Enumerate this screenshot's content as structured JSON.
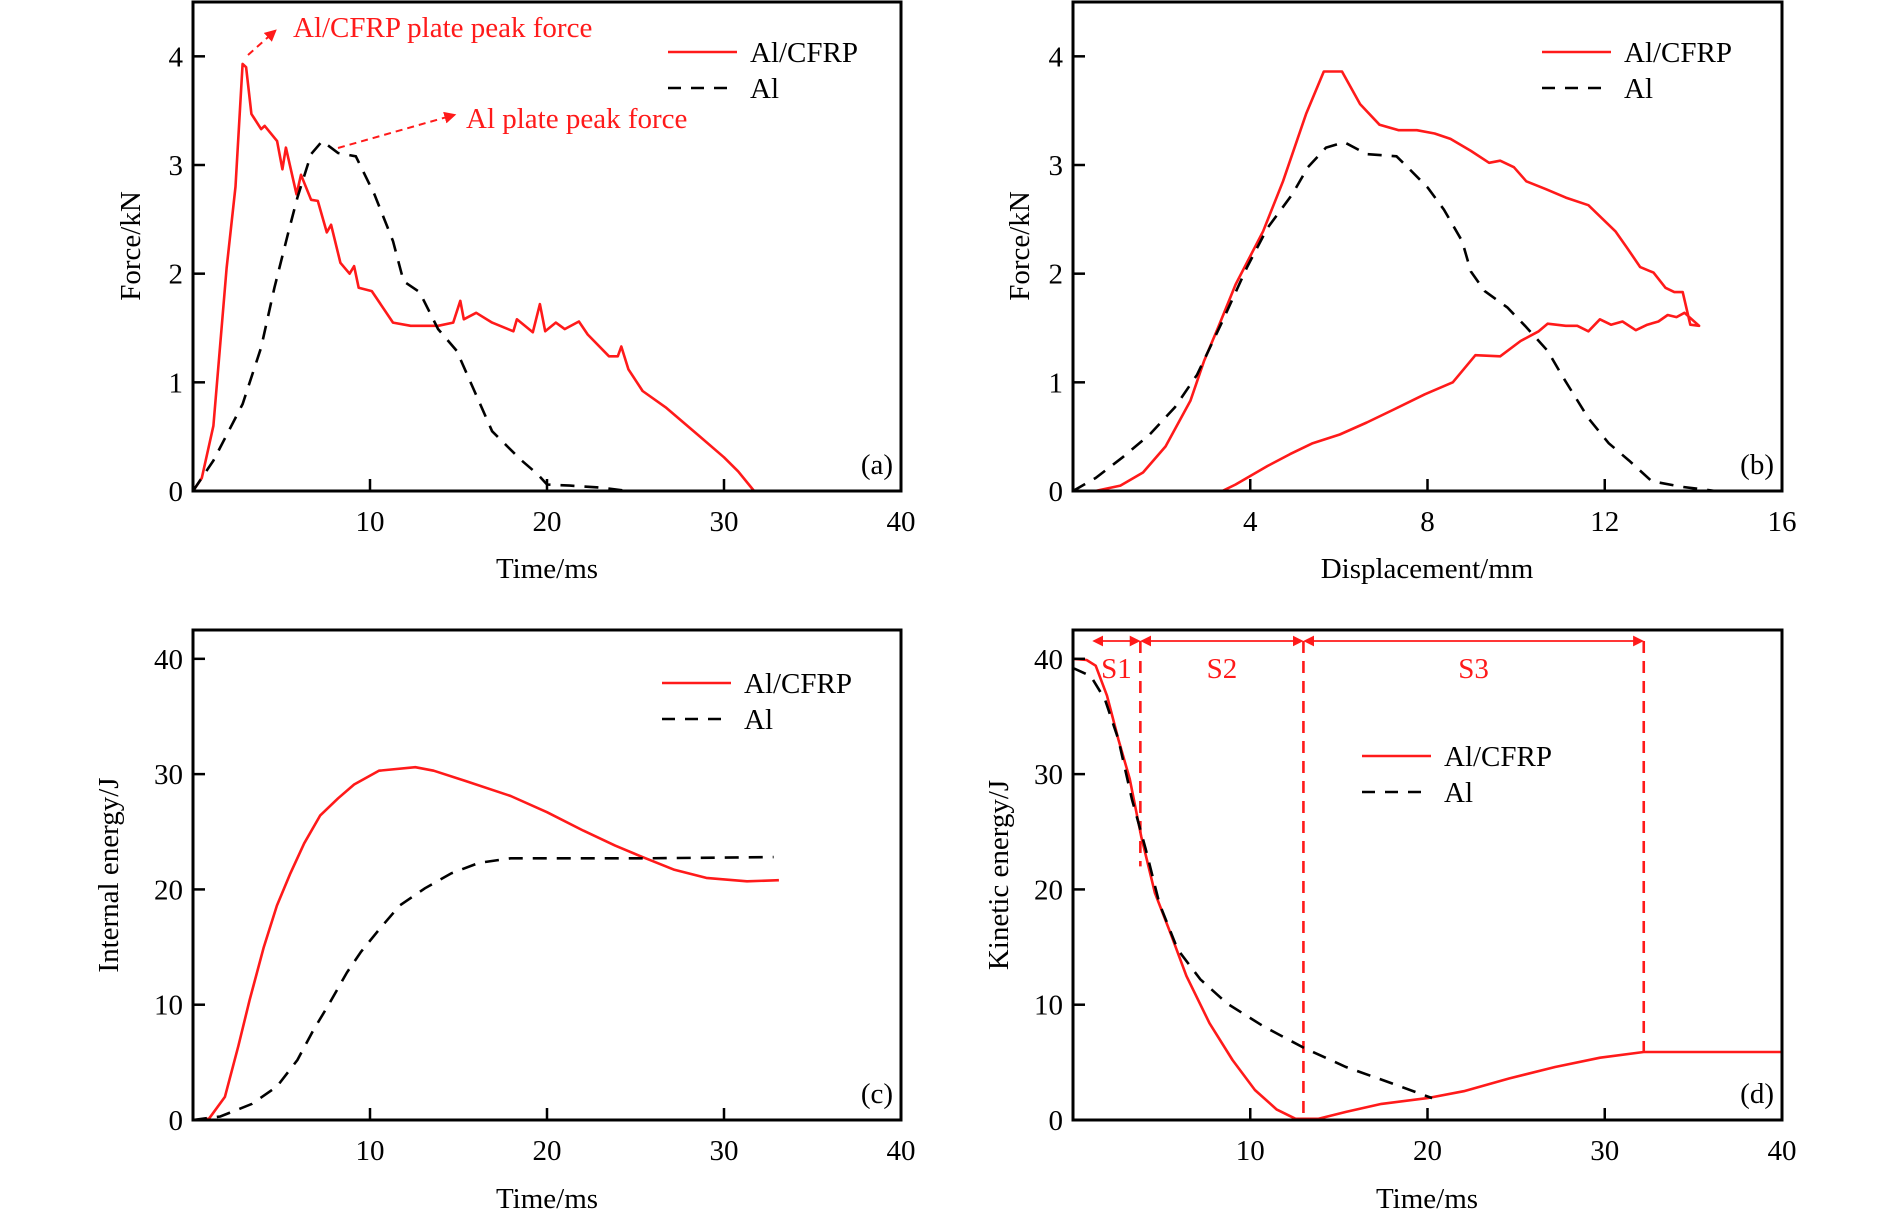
{
  "colors": {
    "al_cfrp": "#ff1a1a",
    "al": "#000000",
    "annotation": "#ff1a1a"
  },
  "chart_data": [
    {
      "id": "a",
      "type": "line",
      "panel_label": "(a)",
      "xlabel": "Time/ms",
      "ylabel": "Force/kN",
      "xlim": [
        0,
        40
      ],
      "ylim": [
        0,
        4.5
      ],
      "xticks": [
        10,
        20,
        30,
        40
      ],
      "yticks": [
        0,
        1,
        2,
        3,
        4
      ],
      "grid": false,
      "legend": {
        "placement": "top-right",
        "entries": [
          "Al/CFRP",
          "Al"
        ]
      },
      "annotations": [
        {
          "text": "Al/CFRP plate peak force",
          "points_to": [
            2.8,
            3.93
          ]
        },
        {
          "text": "Al plate peak force",
          "points_to": [
            7.3,
            3.22
          ]
        }
      ],
      "series": [
        {
          "name": "Al/CFRP",
          "style": "solid",
          "color": "#ff1a1a",
          "x": [
            0,
            0.5,
            1.15,
            1.9,
            2.4,
            2.8,
            3.0,
            3.3,
            3.85,
            4.05,
            4.75,
            5.05,
            5.25,
            5.85,
            6.1,
            6.67,
            7.05,
            7.56,
            7.8,
            8.33,
            8.85,
            9.1,
            9.36,
            10.1,
            11.3,
            12.3,
            13.85,
            14.7,
            15.1,
            15.3,
            16.0,
            16.9,
            18.1,
            18.3,
            19.2,
            19.6,
            19.9,
            20.5,
            21.0,
            21.8,
            22.3,
            23.5,
            24.0,
            24.2,
            24.6,
            25.4,
            26.7,
            28.5,
            30.0,
            30.8,
            31.7
          ],
          "y": [
            0,
            0.12,
            0.6,
            2.05,
            2.8,
            3.93,
            3.9,
            3.47,
            3.33,
            3.36,
            3.22,
            2.96,
            3.16,
            2.73,
            2.91,
            2.68,
            2.67,
            2.38,
            2.45,
            2.1,
            2.0,
            2.07,
            1.87,
            1.84,
            1.55,
            1.52,
            1.52,
            1.55,
            1.75,
            1.58,
            1.64,
            1.55,
            1.47,
            1.58,
            1.46,
            1.72,
            1.47,
            1.55,
            1.49,
            1.56,
            1.44,
            1.24,
            1.24,
            1.33,
            1.12,
            0.92,
            0.77,
            0.52,
            0.31,
            0.18,
            0
          ]
        },
        {
          "name": "Al",
          "style": "dashed",
          "color": "#000000",
          "x": [
            0,
            1.15,
            2.8,
            3.85,
            4.6,
            5.4,
            5.9,
            6.67,
            7.3,
            8.2,
            9.2,
            10.25,
            11.3,
            11.9,
            12.8,
            13.85,
            14.9,
            15.9,
            16.9,
            18.5,
            19.5,
            20.0,
            21.3,
            23.1,
            24.6
          ],
          "y": [
            0,
            0.28,
            0.8,
            1.32,
            1.87,
            2.39,
            2.7,
            3.1,
            3.22,
            3.11,
            3.08,
            2.73,
            2.3,
            1.93,
            1.83,
            1.49,
            1.29,
            0.92,
            0.55,
            0.29,
            0.15,
            0.06,
            0.05,
            0.03,
            0
          ]
        }
      ]
    },
    {
      "id": "b",
      "type": "line",
      "panel_label": "(b)",
      "xlabel": "Displacement/mm",
      "ylabel": "Force/kN",
      "xlim": [
        0,
        16
      ],
      "ylim": [
        0,
        4.5
      ],
      "xticks": [
        4,
        8,
        12,
        16
      ],
      "yticks": [
        0,
        1,
        2,
        3,
        4
      ],
      "grid": false,
      "legend": {
        "placement": "top-right",
        "entries": [
          "Al/CFRP",
          "Al"
        ]
      },
      "series": [
        {
          "name": "Al/CFRP",
          "style": "solid",
          "color": "#ff1a1a",
          "x": [
            0,
            0.5,
            1.07,
            1.58,
            2.09,
            2.65,
            2.96,
            3.27,
            3.67,
            4.29,
            4.74,
            5.26,
            5.66,
            6.07,
            6.48,
            6.92,
            7.35,
            7.76,
            8.16,
            8.52,
            8.98,
            9.39,
            9.64,
            9.95,
            10.23,
            10.66,
            11.12,
            11.63,
            12.24,
            12.5,
            12.8,
            13.1,
            13.37,
            13.57,
            13.76,
            13.93,
            14.13,
            13.8,
            13.62,
            13.42,
            13.21,
            12.96,
            12.7,
            12.4,
            12.14,
            11.89,
            11.63,
            11.38,
            11.12,
            10.71,
            10.51,
            10.1,
            9.64,
            9.08,
            8.57,
            7.94,
            7.24,
            6.63,
            6.02,
            5.41,
            4.9,
            4.39,
            3.67,
            3.37,
            3.06
          ],
          "y": [
            0,
            0,
            0.05,
            0.17,
            0.41,
            0.83,
            1.2,
            1.5,
            1.9,
            2.39,
            2.85,
            3.47,
            3.86,
            3.86,
            3.56,
            3.37,
            3.32,
            3.32,
            3.29,
            3.24,
            3.13,
            3.02,
            3.04,
            2.98,
            2.85,
            2.78,
            2.7,
            2.63,
            2.39,
            2.24,
            2.06,
            2.01,
            1.87,
            1.83,
            1.83,
            1.53,
            1.52,
            1.64,
            1.6,
            1.62,
            1.56,
            1.53,
            1.48,
            1.56,
            1.53,
            1.58,
            1.47,
            1.52,
            1.52,
            1.54,
            1.47,
            1.38,
            1.24,
            1.25,
            1.0,
            0.89,
            0.75,
            0.63,
            0.52,
            0.44,
            0.34,
            0.23,
            0.06,
            0,
            0
          ]
        },
        {
          "name": "Al",
          "style": "dashed",
          "color": "#000000",
          "x": [
            0,
            0.51,
            1.12,
            1.73,
            2.3,
            2.8,
            3.37,
            3.93,
            4.39,
            4.95,
            5.3,
            5.71,
            6.12,
            6.63,
            7.3,
            7.55,
            8.01,
            8.37,
            8.78,
            8.98,
            9.29,
            9.8,
            10.2,
            10.71,
            11.07,
            11.63,
            12.09,
            12.55,
            13.06,
            13.72,
            14.5,
            15.1
          ],
          "y": [
            0,
            0.12,
            0.31,
            0.52,
            0.77,
            1.07,
            1.56,
            2.06,
            2.42,
            2.73,
            2.98,
            3.16,
            3.21,
            3.1,
            3.08,
            2.98,
            2.79,
            2.59,
            2.3,
            2.02,
            1.84,
            1.69,
            1.52,
            1.29,
            1.04,
            0.67,
            0.44,
            0.28,
            0.09,
            0.04,
            0,
            0
          ]
        }
      ]
    },
    {
      "id": "c",
      "type": "line",
      "panel_label": "(c)",
      "xlabel": "Time/ms",
      "ylabel": "Internal energy/J",
      "xlim": [
        0,
        40
      ],
      "ylim": [
        0,
        42.5
      ],
      "xticks": [
        10,
        20,
        30,
        40
      ],
      "yticks": [
        0,
        10,
        20,
        30,
        40
      ],
      "grid": false,
      "legend": {
        "placement": "top-right",
        "entries": [
          "Al/CFRP",
          "Al"
        ]
      },
      "series": [
        {
          "name": "Al/CFRP",
          "style": "solid",
          "color": "#ff1a1a",
          "x": [
            0,
            0.9,
            1.8,
            2.56,
            3.2,
            4.0,
            4.74,
            5.5,
            6.28,
            7.18,
            8.2,
            9.1,
            10.5,
            12.56,
            13.6,
            15.4,
            17.95,
            20.0,
            22.05,
            23.85,
            25.4,
            27.2,
            29.0,
            31.3,
            33.1
          ],
          "y": [
            0,
            0.1,
            2.0,
            6.4,
            10.4,
            15.0,
            18.6,
            21.4,
            24.0,
            26.4,
            27.9,
            29.1,
            30.3,
            30.6,
            30.3,
            29.4,
            28.1,
            26.7,
            25.1,
            23.8,
            22.8,
            21.7,
            21.0,
            20.7,
            20.8
          ]
        },
        {
          "name": "Al",
          "style": "dashed",
          "color": "#000000",
          "x": [
            0,
            1.54,
            3.33,
            4.74,
            5.9,
            6.8,
            7.7,
            8.7,
            9.5,
            10.5,
            11.67,
            13.1,
            14.6,
            16.15,
            17.95,
            20.5,
            25.6,
            32.8
          ],
          "y": [
            0,
            0.3,
            1.4,
            2.9,
            5.2,
            7.8,
            10.1,
            12.8,
            14.6,
            16.5,
            18.6,
            20.1,
            21.4,
            22.3,
            22.7,
            22.7,
            22.7,
            22.8
          ]
        }
      ]
    },
    {
      "id": "d",
      "type": "line",
      "panel_label": "(d)",
      "xlabel": "Time/ms",
      "ylabel": "Kinetic energy/J",
      "xlim": [
        0,
        40
      ],
      "ylim": [
        0,
        42.5
      ],
      "xticks": [
        10,
        20,
        30,
        40
      ],
      "yticks": [
        0,
        10,
        20,
        30,
        40
      ],
      "grid": false,
      "legend": {
        "placement": "upper-center",
        "entries": [
          "Al/CFRP",
          "Al"
        ]
      },
      "stages": [
        {
          "label": "S1",
          "from": 1.1,
          "to": 3.8
        },
        {
          "label": "S2",
          "from": 3.8,
          "to": 13.0
        },
        {
          "label": "S3",
          "from": 13.0,
          "to": 32.2
        }
      ],
      "series": [
        {
          "name": "Al/CFRP",
          "style": "solid",
          "color": "#ff1a1a",
          "x": [
            0,
            0.77,
            1.28,
            1.92,
            2.56,
            3.2,
            3.85,
            4.62,
            5.5,
            6.4,
            7.7,
            9.0,
            10.26,
            11.5,
            12.56,
            13.85,
            15.4,
            17.4,
            20.0,
            22.05,
            24.6,
            27.2,
            29.74,
            32.2,
            33.3,
            40.0
          ],
          "y": [
            40,
            39.9,
            39.4,
            36.8,
            33.0,
            29.6,
            24.6,
            19.7,
            16.2,
            12.5,
            8.4,
            5.2,
            2.6,
            0.9,
            0.1,
            0.1,
            0.7,
            1.4,
            1.9,
            2.5,
            3.6,
            4.6,
            5.4,
            5.9,
            5.9,
            5.9
          ]
        },
        {
          "name": "Al",
          "style": "dashed",
          "color": "#000000",
          "x": [
            0,
            1.0,
            1.8,
            2.56,
            3.33,
            4.1,
            4.87,
            5.9,
            7.18,
            8.7,
            10.77,
            13.1,
            15.4,
            17.95,
            20.26
          ],
          "y": [
            39.2,
            38.5,
            36.5,
            33.0,
            27.8,
            23.5,
            18.8,
            14.8,
            12.2,
            10.1,
            8.1,
            6.2,
            4.6,
            3.2,
            1.9
          ]
        }
      ]
    }
  ]
}
